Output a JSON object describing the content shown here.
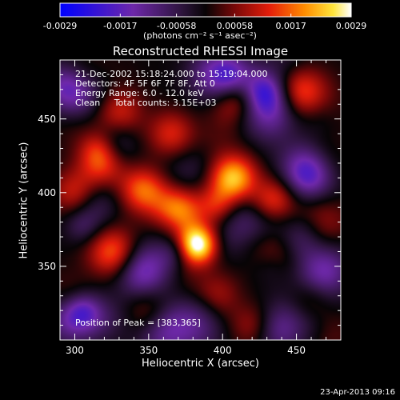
{
  "chart_data": {
    "type": "heatmap",
    "title": "Reconstructed RHESSI Image",
    "xlabel": "Heliocentric X (arcsec)",
    "ylabel": "Heliocentric Y (arcsec)",
    "xlim": [
      290,
      480
    ],
    "ylim": [
      300,
      490
    ],
    "x_ticks": [
      300,
      350,
      400,
      450
    ],
    "y_ticks": [
      350,
      400,
      450
    ],
    "colorbar": {
      "range": [
        -0.0029,
        0.0029
      ],
      "tick_values": [
        -0.0029,
        -0.0017,
        -0.00058,
        0.00058,
        0.0017,
        0.0029
      ],
      "tick_labels": [
        "-0.0029",
        "-0.0017",
        "-0.00058",
        "0.00058",
        "0.0017",
        "0.0029"
      ],
      "units": "(photons cm⁻² s⁻¹ asec⁻²)"
    },
    "annotations": [
      "21-Dec-2002 15:18:24.000 to 15:19:04.000",
      "Detectors: 4F 5F 6F 7F 8F, Att 0",
      "Energy Range: 6.0 - 12.0 keV",
      "Clean     Total counts: 3.15E+03"
    ],
    "peak_label": "Position of Peak = [383,365]",
    "peak": [
      383,
      365
    ],
    "sources": [
      {
        "x": 383,
        "y": 365,
        "value": 0.0029
      },
      {
        "x": 407,
        "y": 410,
        "value": 0.0024
      },
      {
        "x": 368,
        "y": 385,
        "value": 0.0018
      },
      {
        "x": 345,
        "y": 402,
        "value": 0.0016
      },
      {
        "x": 318,
        "y": 420,
        "value": 0.0015
      },
      {
        "x": 300,
        "y": 400,
        "value": 0.0013
      },
      {
        "x": 435,
        "y": 395,
        "value": 0.0013
      },
      {
        "x": 365,
        "y": 440,
        "value": 0.0012
      },
      {
        "x": 330,
        "y": 455,
        "value": 0.0011
      },
      {
        "x": 440,
        "y": 355,
        "value": 0.0012
      },
      {
        "x": 325,
        "y": 360,
        "value": 0.001
      },
      {
        "x": 395,
        "y": 330,
        "value": 0.001
      },
      {
        "x": 350,
        "y": 320,
        "value": 0.0008
      },
      {
        "x": 460,
        "y": 330,
        "value": 0.0007
      },
      {
        "x": 405,
        "y": 460,
        "value": 0.0008
      },
      {
        "x": 305,
        "y": 480,
        "value": 0.0007
      },
      {
        "x": 420,
        "y": 310,
        "value": 0.0007
      },
      {
        "x": 470,
        "y": 420,
        "value": 0.0005
      },
      {
        "x": 296,
        "y": 330,
        "value": 0.0006
      },
      {
        "x": 452,
        "y": 470,
        "value": 0.0005
      }
    ],
    "negative_regions": [
      {
        "x": 300,
        "y": 470,
        "value": -0.0018
      },
      {
        "x": 458,
        "y": 415,
        "value": -0.002
      },
      {
        "x": 470,
        "y": 345,
        "value": -0.0015
      },
      {
        "x": 348,
        "y": 350,
        "value": -0.0014
      },
      {
        "x": 300,
        "y": 315,
        "value": -0.0016
      },
      {
        "x": 395,
        "y": 480,
        "value": -0.0013
      },
      {
        "x": 430,
        "y": 455,
        "value": -0.0013
      },
      {
        "x": 360,
        "y": 305,
        "value": -0.0011
      },
      {
        "x": 440,
        "y": 310,
        "value": -0.001
      }
    ]
  },
  "footer": {
    "date": "23-Apr-2013 09:16"
  }
}
